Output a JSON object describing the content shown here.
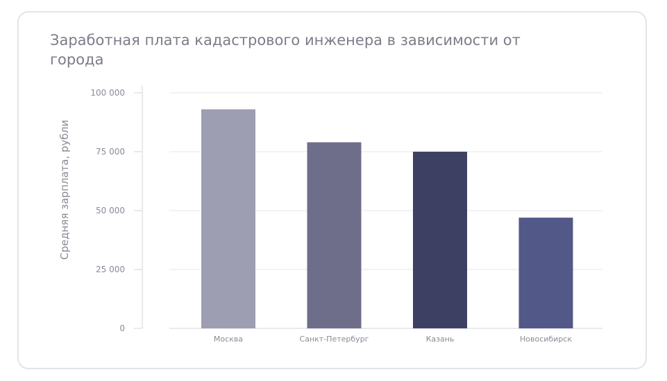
{
  "chart_data": {
    "type": "bar",
    "title": "Заработная плата кадастрового инженера в зависимости от города",
    "xlabel": "",
    "ylabel": "Средняя зарплата, рубли",
    "categories": [
      "Москва",
      "Санкт-Петербург",
      "Казань",
      "Новосибирск"
    ],
    "values": [
      93000,
      79000,
      75000,
      47000
    ],
    "bar_colors": [
      "#9e9eb2",
      "#6e6e8b",
      "#3e4063",
      "#525888"
    ],
    "ylim": [
      0,
      100000
    ],
    "yticks": [
      0,
      25000,
      50000,
      75000,
      100000
    ],
    "ytick_labels": [
      "0",
      "25 000",
      "50 000",
      "75 000",
      "100 000"
    ],
    "grid": true,
    "legend": "none"
  },
  "colors": {
    "grid": "#e6e6ec",
    "axis": "#d4d4dc",
    "text": "#8a8a96"
  }
}
